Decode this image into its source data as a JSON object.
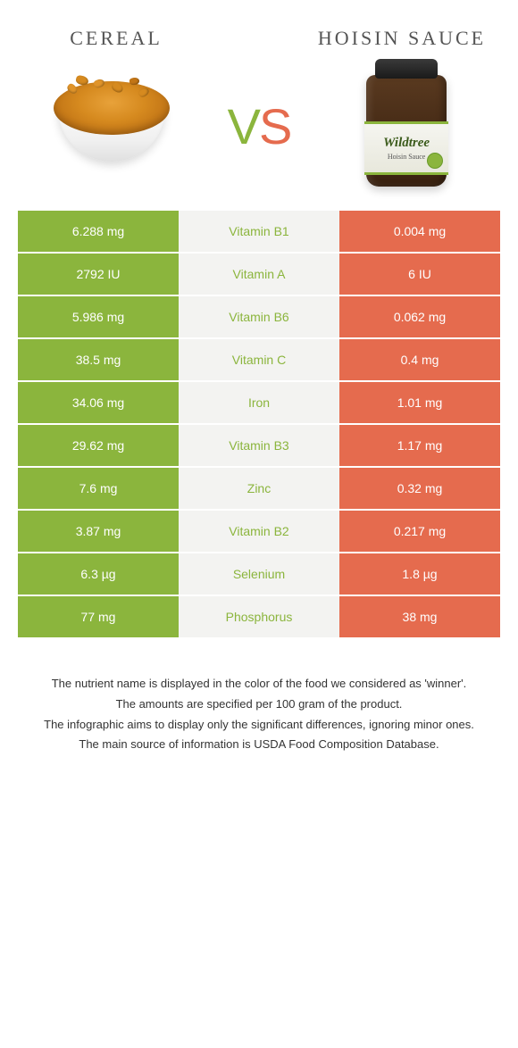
{
  "colors": {
    "left": "#8bb53d",
    "right": "#e56b4e",
    "mid_bg": "#f3f3f1",
    "left_text": "#ffffff",
    "right_text": "#ffffff"
  },
  "header": {
    "left_title": "Cereal",
    "right_title": "Hoisin sauce",
    "vs": {
      "v": "V",
      "s": "S"
    },
    "jar_brand": "Wildtree",
    "jar_product": "Hoisin Sauce"
  },
  "rows": [
    {
      "left": "6.288 mg",
      "nutrient": "Vitamin B1",
      "right": "0.004 mg",
      "winner": "left"
    },
    {
      "left": "2792 IU",
      "nutrient": "Vitamin A",
      "right": "6 IU",
      "winner": "left"
    },
    {
      "left": "5.986 mg",
      "nutrient": "Vitamin B6",
      "right": "0.062 mg",
      "winner": "left"
    },
    {
      "left": "38.5 mg",
      "nutrient": "Vitamin C",
      "right": "0.4 mg",
      "winner": "left"
    },
    {
      "left": "34.06 mg",
      "nutrient": "Iron",
      "right": "1.01 mg",
      "winner": "left"
    },
    {
      "left": "29.62 mg",
      "nutrient": "Vitamin B3",
      "right": "1.17 mg",
      "winner": "left"
    },
    {
      "left": "7.6 mg",
      "nutrient": "Zinc",
      "right": "0.32 mg",
      "winner": "left"
    },
    {
      "left": "3.87 mg",
      "nutrient": "Vitamin B2",
      "right": "0.217 mg",
      "winner": "left"
    },
    {
      "left": "6.3 µg",
      "nutrient": "Selenium",
      "right": "1.8 µg",
      "winner": "left"
    },
    {
      "left": "77 mg",
      "nutrient": "Phosphorus",
      "right": "38 mg",
      "winner": "left"
    }
  ],
  "footnotes": [
    "The nutrient name is displayed in the color of the food we considered as 'winner'.",
    "The amounts are specified per 100 gram of the product.",
    "The infographic aims to display only the significant differences, ignoring minor ones.",
    "The main source of information is USDA Food Composition Database."
  ]
}
